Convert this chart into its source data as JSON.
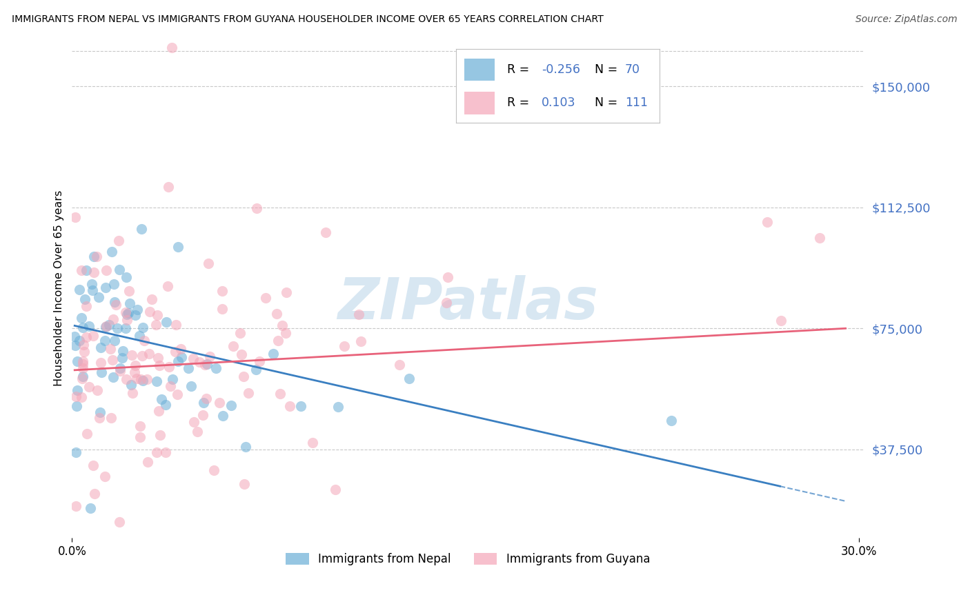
{
  "title": "IMMIGRANTS FROM NEPAL VS IMMIGRANTS FROM GUYANA HOUSEHOLDER INCOME OVER 65 YEARS CORRELATION CHART",
  "source": "Source: ZipAtlas.com",
  "ylabel": "Householder Income Over 65 years",
  "ytick_labels": [
    "$150,000",
    "$112,500",
    "$75,000",
    "$37,500"
  ],
  "ytick_values": [
    150000,
    112500,
    75000,
    37500
  ],
  "ymin": 10000,
  "ymax": 165000,
  "xmin": 0.0,
  "xmax": 0.302,
  "nepal_color": "#6aaed6",
  "nepal_line_color": "#3a7fc1",
  "guyana_color": "#f4a6b8",
  "guyana_line_color": "#e8627a",
  "nepal_R": -0.256,
  "nepal_N": 70,
  "guyana_R": 0.103,
  "guyana_N": 111,
  "watermark": "ZIPatlas",
  "background_color": "#ffffff",
  "grid_color": "#c8c8c8",
  "label_color": "#4472c4",
  "legend_R_color": "#4472c4"
}
